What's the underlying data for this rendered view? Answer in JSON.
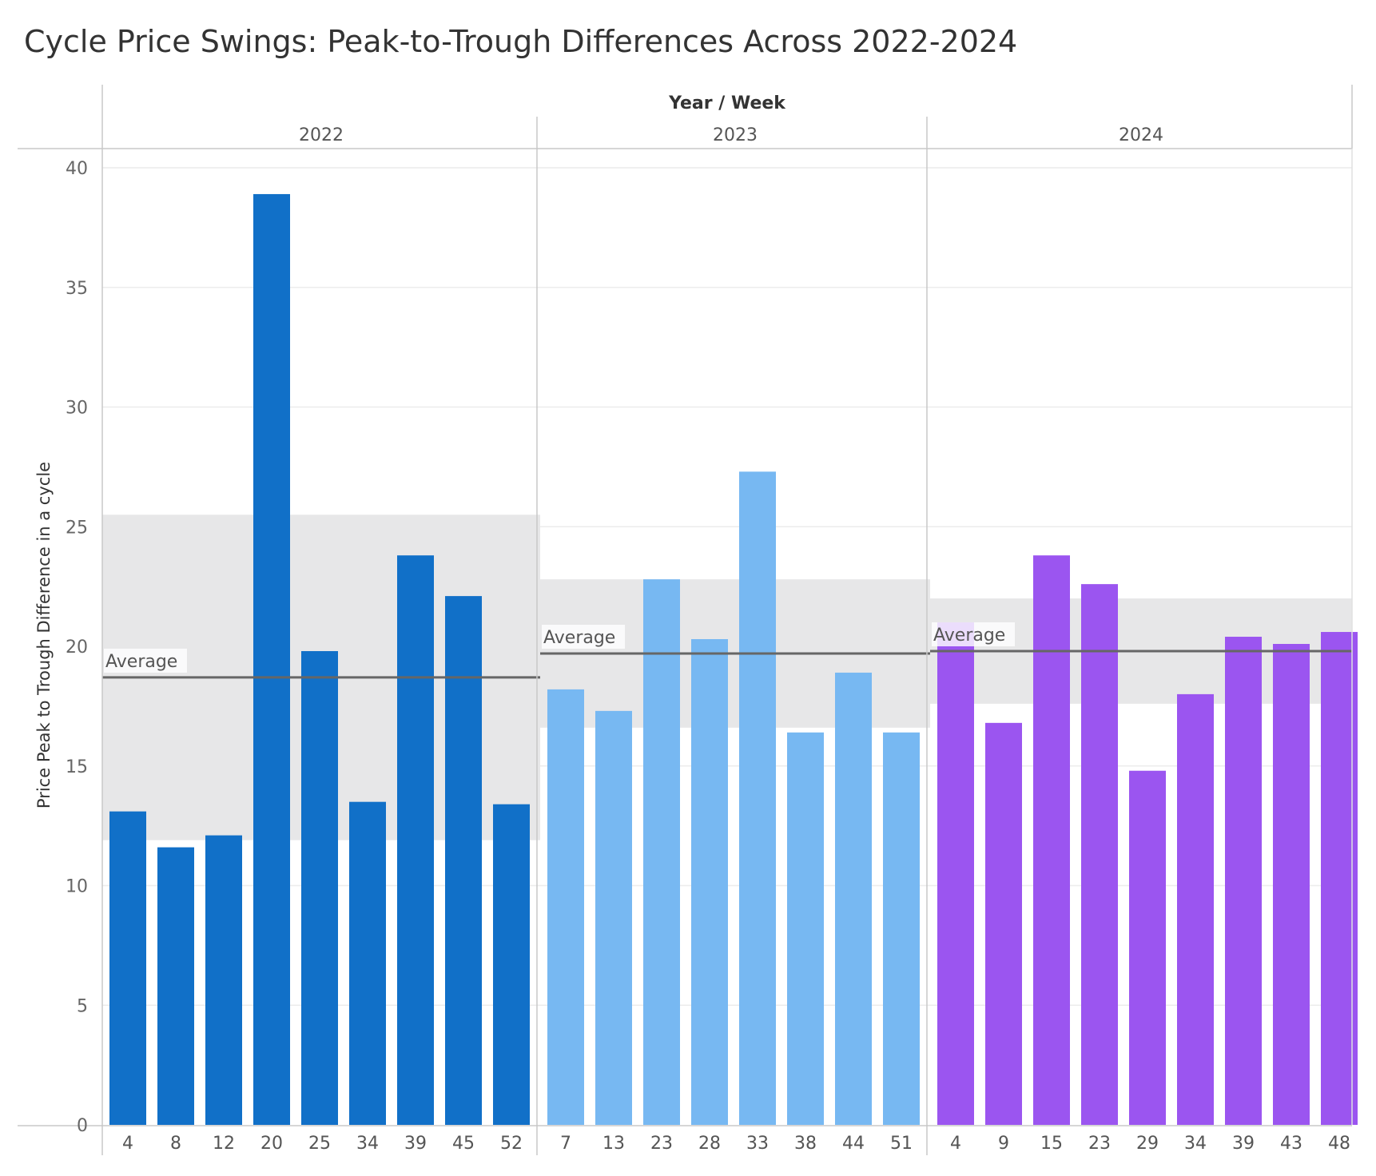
{
  "title": "Cycle Price Swings: Peak-to-Trough Differences Across 2022-2024",
  "chart_data": {
    "type": "bar",
    "title": "Cycle Price Swings: Peak-to-Trough Differences Across 2022-2024",
    "column_header": "Year / Week",
    "ylabel": "Price Peak to Trough Difference in a cycle",
    "ylim": [
      0,
      40
    ],
    "yticks": [
      0,
      5,
      10,
      15,
      20,
      25,
      30,
      35,
      40
    ],
    "grid": true,
    "reference_line_label": "Average",
    "panels": [
      {
        "year": "2022",
        "color": "#1170C8",
        "weeks": [
          "4",
          "8",
          "12",
          "20",
          "25",
          "34",
          "39",
          "45",
          "52"
        ],
        "values": [
          13.1,
          11.6,
          12.1,
          38.9,
          19.8,
          13.5,
          23.8,
          22.1,
          13.4
        ],
        "average": 18.7,
        "band": [
          11.9,
          25.5
        ]
      },
      {
        "year": "2023",
        "color": "#77B8F2",
        "weeks": [
          "7",
          "13",
          "23",
          "28",
          "33",
          "38",
          "44",
          "51"
        ],
        "values": [
          18.2,
          17.3,
          22.8,
          20.3,
          27.3,
          16.4,
          18.9,
          16.4
        ],
        "average": 19.7,
        "band": [
          16.6,
          22.8
        ]
      },
      {
        "year": "2024",
        "color": "#9B55F0",
        "weeks": [
          "4",
          "9",
          "15",
          "23",
          "29",
          "34",
          "39",
          "43",
          "48"
        ],
        "values": [
          21.0,
          16.8,
          23.8,
          22.6,
          14.8,
          18.0,
          20.4,
          20.1,
          20.6
        ],
        "average": 19.8,
        "band": [
          17.6,
          22.0
        ]
      }
    ]
  }
}
